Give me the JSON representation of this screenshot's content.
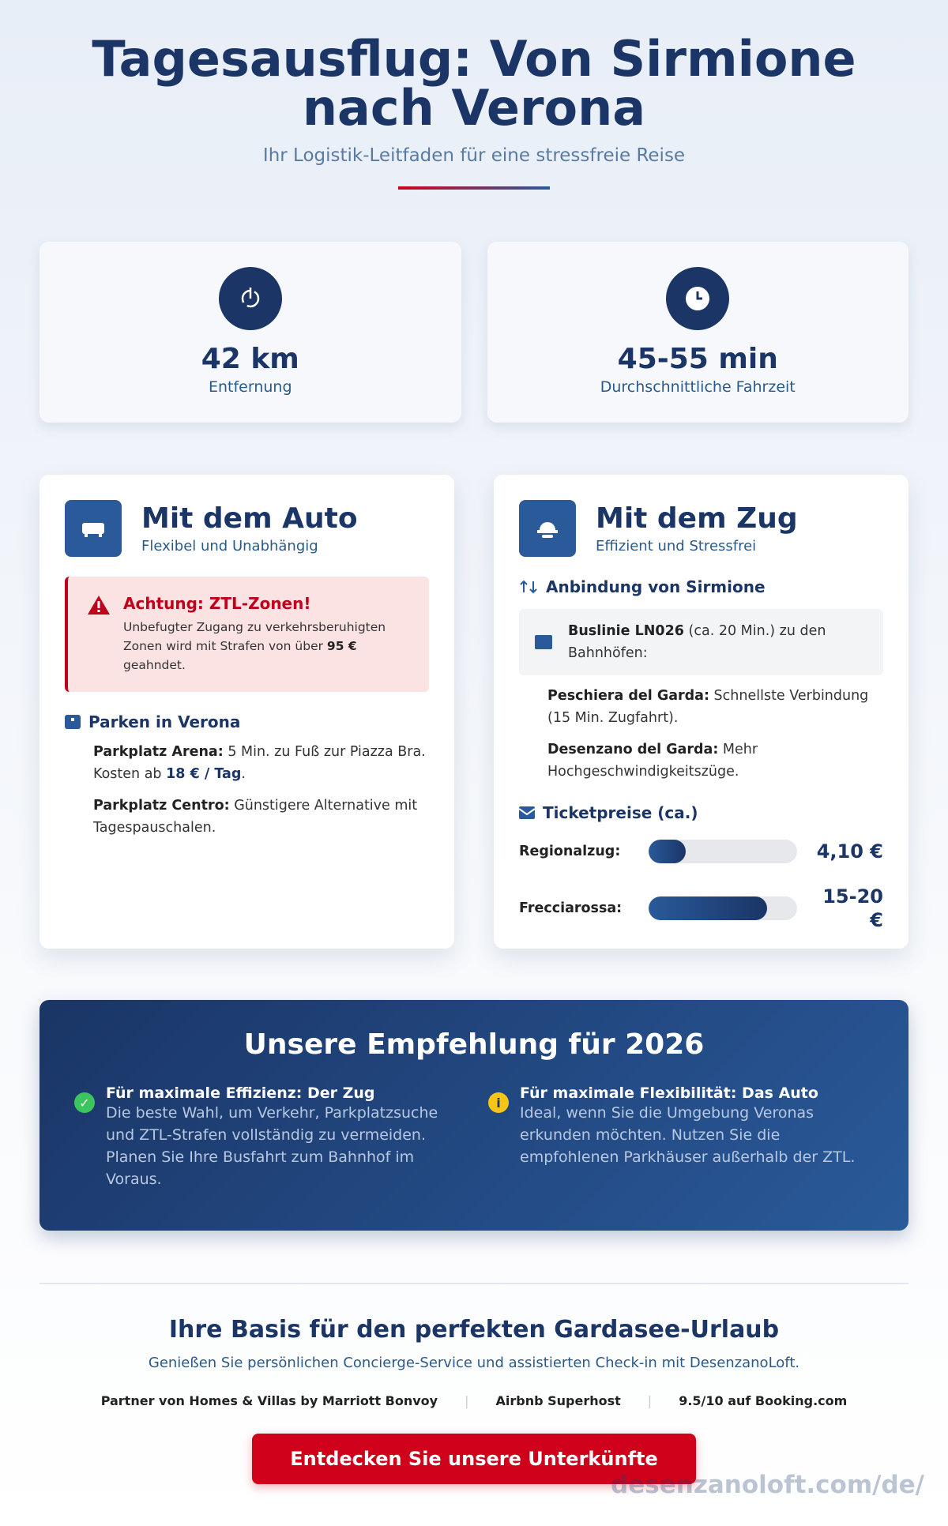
{
  "header": {
    "title": "Tagesausflug: Von Sirmione nach Verona",
    "subtitle": "Ihr Logistik-Leitfaden für eine stressfreie Reise"
  },
  "stats": [
    {
      "value": "42 km",
      "label": "Entfernung"
    },
    {
      "value": "45-55 min",
      "label": "Durchschnittliche Fahrzeit"
    }
  ],
  "car": {
    "title": "Mit dem Auto",
    "subtitle": "Flexibel und Unabhängig",
    "warning": {
      "title": "Achtung: ZTL-Zonen!",
      "text": "Unbefugter Zugang zu verkehrsberuhigten Zonen wird mit Strafen von über",
      "amount": "95 €",
      "end": "geahndet."
    },
    "parking": {
      "heading": "Parken in Verona",
      "items": [
        {
          "name": "Parkplatz Arena:",
          "text": "5 Min. zu Fuß zur Piazza Bra. Kosten ab",
          "price": "18 € / Tag",
          "end": "."
        },
        {
          "name": "Parkplatz Centro:",
          "text": "Günstigere Alternative mit Tagespauschalen."
        }
      ]
    }
  },
  "train": {
    "title": "Mit dem Zug",
    "subtitle": "Effizient und Stressfrei",
    "connection": {
      "heading": "Anbindung von Sirmione",
      "bus_name": "Buslinie LN026",
      "bus_text": "(ca. 20 Min.) zu den Bahnhöfen:",
      "items": [
        {
          "name": "Peschiera del Garda:",
          "text": "Schnellste Verbindung (15 Min. Zugfahrt)."
        },
        {
          "name": "Desenzano del Garda:",
          "text": "Mehr Hochgeschwindigkeitszüge."
        }
      ]
    },
    "tickets": {
      "heading": "Ticketpreise (ca.)",
      "rows": [
        {
          "name": "Regionalzug:",
          "price": "4,10 €"
        },
        {
          "name": "Frecciarossa:",
          "price": "15-20 €"
        }
      ]
    }
  },
  "recommendation": {
    "title": "Unsere Empfehlung für 2026",
    "items": [
      {
        "title": "Für maximale Effizienz: Der Zug",
        "text": "Die beste Wahl, um Verkehr, Parkplatzsuche und ZTL-Strafen vollständig zu vermeiden. Planen Sie Ihre Busfahrt zum Bahnhof im Voraus."
      },
      {
        "title": "Für maximale Flexibilität: Das Auto",
        "text": "Ideal, wenn Sie die Umgebung Veronas erkunden möchten. Nutzen Sie die empfohlenen Parkhäuser außerhalb der ZTL."
      }
    ]
  },
  "footer": {
    "title": "Ihre Basis für den perfekten Gardasee-Urlaub",
    "text": "Genießen Sie persönlichen Concierge-Service und assistierten Check-in mit DesenzanoLoft.",
    "badges": [
      "Partner von Homes & Villas by Marriott Bonvoy",
      "Airbnb Superhost",
      "9.5/10 auf Booking.com"
    ],
    "button": "Entdecken Sie unsere Unterkünfte",
    "watermark": "desenzanoloft.com/de/"
  }
}
